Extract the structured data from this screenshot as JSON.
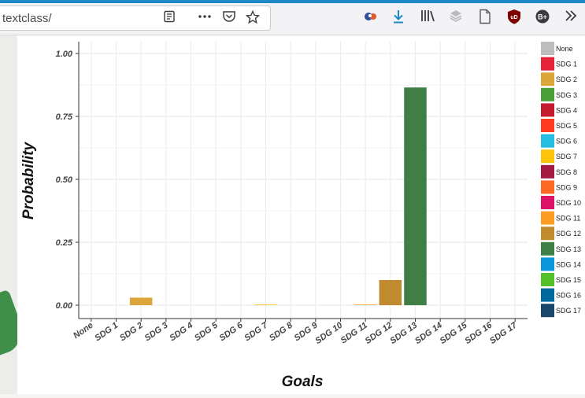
{
  "browser": {
    "url": "textclass/",
    "icons": [
      "reader-view-icon",
      "more-actions-icon",
      "pocket-icon",
      "bookmark-star-icon",
      "extension-icon",
      "download-icon",
      "library-icon",
      "sync-icon",
      "page-icon",
      "ublock-icon",
      "extension-b-icon",
      "overflow-menu-icon"
    ]
  },
  "colors": {
    "accent": "#1e88c8"
  },
  "chart_data": {
    "type": "bar",
    "xlabel": "Goals",
    "ylabel": "Probability",
    "ylim": [
      0,
      1.0
    ],
    "yticks": [
      "0.00",
      "0.25",
      "0.50",
      "0.75",
      "1.00"
    ],
    "categories": [
      "None",
      "SDG 1",
      "SDG 2",
      "SDG 3",
      "SDG 4",
      "SDG 5",
      "SDG 6",
      "SDG 7",
      "SDG 8",
      "SDG 9",
      "SDG 10",
      "SDG 11",
      "SDG 12",
      "SDG 13",
      "SDG 14",
      "SDG 15",
      "SDG 16",
      "SDG 17"
    ],
    "values": [
      0,
      0,
      0.03,
      0,
      0,
      0,
      0,
      0.002,
      0,
      0,
      0,
      0.002,
      0.1,
      0.865,
      0,
      0,
      0,
      0
    ],
    "colors": [
      "#bdbdbd",
      "#e5243b",
      "#dda63a",
      "#4c9f38",
      "#c5192d",
      "#ff3a21",
      "#26bde2",
      "#fcc30b",
      "#a21942",
      "#fd6925",
      "#dd1367",
      "#fd9d24",
      "#bf8b2e",
      "#3f7e44",
      "#0a97d9",
      "#56c02b",
      "#00689d",
      "#19486a"
    ],
    "legend": {
      "placement": "right",
      "entries": [
        "None",
        "SDG 1",
        "SDG 2",
        "SDG 3",
        "SDG 4",
        "SDG 5",
        "SDG 6",
        "SDG 7",
        "SDG 8",
        "SDG 9",
        "SDG 10",
        "SDG 11",
        "SDG 12",
        "SDG 13",
        "SDG 14",
        "SDG 15",
        "SDG 16",
        "SDG 17"
      ]
    },
    "grid": true
  }
}
